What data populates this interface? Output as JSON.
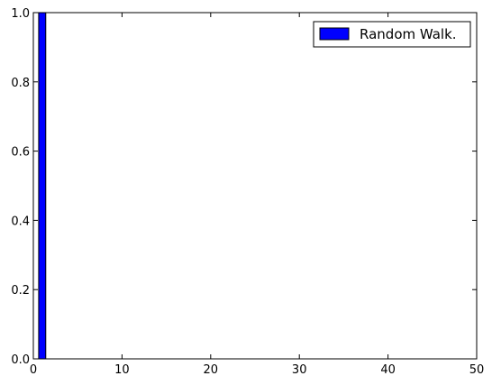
{
  "chart_data": {
    "type": "bar",
    "x": [
      1
    ],
    "series": [
      {
        "name": "Random Walk.",
        "values": [
          1.0
        ],
        "color": "#0000ff"
      }
    ],
    "xlim": [
      0,
      50
    ],
    "ylim": [
      0,
      1.0
    ],
    "xticks": [
      0,
      10,
      20,
      30,
      40,
      50
    ],
    "yticks": [
      0.0,
      0.2,
      0.4,
      0.6,
      0.8,
      1.0
    ],
    "xtick_labels": [
      "0",
      "10",
      "20",
      "30",
      "40",
      "50"
    ],
    "ytick_labels": [
      "0.0",
      "0.2",
      "0.4",
      "0.6",
      "0.8",
      "1.0"
    ],
    "bar_width": 0.8,
    "grid": false,
    "legend_position": "top-right",
    "title": "",
    "xlabel": "",
    "ylabel": ""
  }
}
